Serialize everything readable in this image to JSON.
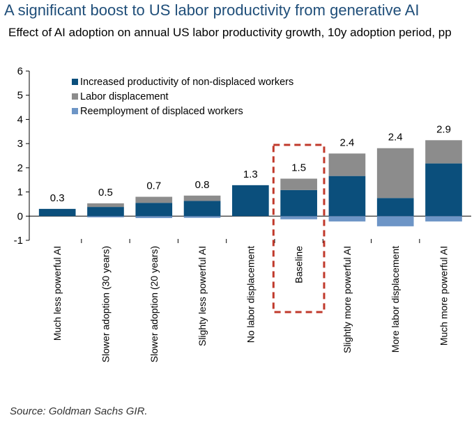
{
  "header": {
    "title": "A significant boost to US labor productivity from generative AI",
    "subtitle": "Effect of AI adoption on annual US labor productivity growth, 10y adoption period, pp"
  },
  "footer": {
    "source": "Source: Goldman Sachs GIR."
  },
  "chart_data": {
    "type": "bar",
    "stacked": true,
    "title": "",
    "xlabel": "",
    "ylabel": "",
    "ylim": [
      -1,
      6
    ],
    "yticks": [
      "6",
      "5",
      "4",
      "3",
      "2",
      "1",
      "0",
      "-1"
    ],
    "grid": false,
    "legend_position": "top-left",
    "highlight": "Baseline",
    "categories": [
      "Much less powerful AI",
      "Slower adoption (30 years)",
      "Slower adoption (20 years)",
      "Slighty less powerful AI",
      "No labor displacement",
      "Baseline",
      "Slightly more powerful AI",
      "More labor displacement",
      "Much more powerful AI"
    ],
    "totals": [
      "0.3",
      "0.5",
      "0.7",
      "0.8",
      "1.3",
      "1.5",
      "2.4",
      "2.4",
      "2.9"
    ],
    "series": [
      {
        "name": "Increased productivity of non-displaced workers",
        "color": "#0b4f7c",
        "values": [
          0.3,
          0.38,
          0.55,
          0.63,
          1.28,
          1.08,
          1.66,
          0.75,
          2.18
        ]
      },
      {
        "name": "Labor displacement",
        "color": "#8c8c8c",
        "values": [
          0.0,
          0.15,
          0.25,
          0.22,
          0.0,
          0.47,
          0.93,
          2.06,
          0.96
        ]
      },
      {
        "name": "Reemployment of displaced workers",
        "color": "#6d95c6",
        "values": [
          0.0,
          -0.05,
          -0.08,
          -0.07,
          0.0,
          -0.13,
          -0.22,
          -0.42,
          -0.22
        ]
      }
    ]
  }
}
